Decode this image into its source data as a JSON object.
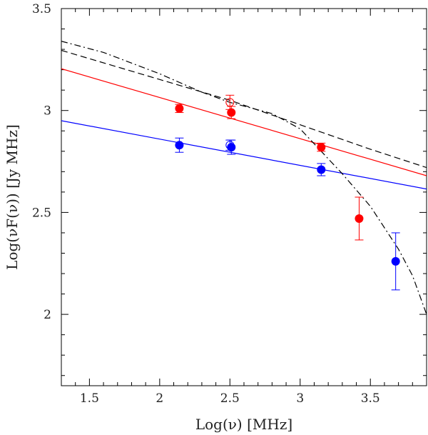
{
  "chart_data": {
    "type": "scatter",
    "title": "",
    "xlabel": "Log(ν)  [MHz]",
    "ylabel": "Log(νF(ν))  [Jy MHz]",
    "xlim": [
      1.3,
      3.9
    ],
    "ylim": [
      1.65,
      3.5
    ],
    "x_ticks": [
      1.5,
      2,
      2.5,
      3,
      3.5
    ],
    "x_tick_labels": [
      "1.5",
      "2",
      "2.5",
      "3",
      "3.5"
    ],
    "y_ticks": [
      2,
      2.5,
      3,
      3.5
    ],
    "y_tick_labels": [
      "2",
      "2.5",
      "3",
      "3.5"
    ],
    "series": [
      {
        "name": "red points",
        "color": "#ff0000",
        "marker": "filled-circle",
        "points": [
          {
            "x": 2.14,
            "y": 3.01,
            "err": 0.02
          },
          {
            "x": 2.51,
            "y": 2.99,
            "err": 0.03
          },
          {
            "x": 3.15,
            "y": 2.82,
            "err": 0.02
          },
          {
            "x": 3.42,
            "y": 2.47,
            "err": 0.105
          }
        ]
      },
      {
        "name": "red open point",
        "color": "#ff0000",
        "marker": "open-circle",
        "points": [
          {
            "x": 2.5,
            "y": 3.04,
            "err": 0.035
          }
        ]
      },
      {
        "name": "blue points",
        "color": "#0000ff",
        "marker": "filled-circle",
        "points": [
          {
            "x": 2.14,
            "y": 2.83,
            "err": 0.035
          },
          {
            "x": 2.51,
            "y": 2.82,
            "err": 0.035
          },
          {
            "x": 3.15,
            "y": 2.71,
            "err": 0.03
          },
          {
            "x": 3.68,
            "y": 2.26,
            "err": 0.14
          }
        ]
      },
      {
        "name": "blue open point",
        "color": "#0000ff",
        "marker": "open-circle",
        "points": [
          {
            "x": 2.5,
            "y": 2.83,
            "err": 0.025
          }
        ]
      }
    ],
    "lines": [
      {
        "name": "red power-law fit",
        "color": "#ff0000",
        "style": "solid",
        "points": [
          [
            1.3,
            3.205
          ],
          [
            3.9,
            2.68
          ]
        ]
      },
      {
        "name": "blue power-law fit",
        "color": "#0000ff",
        "style": "solid",
        "points": [
          [
            1.3,
            2.95
          ],
          [
            3.9,
            2.615
          ]
        ]
      },
      {
        "name": "dashed model",
        "color": "#000000",
        "style": "dashed",
        "points": [
          [
            1.3,
            3.295
          ],
          [
            2.5,
            3.05
          ],
          [
            3.0,
            2.93
          ],
          [
            3.5,
            2.81
          ],
          [
            3.9,
            2.72
          ]
        ]
      },
      {
        "name": "dash-dot model",
        "color": "#000000",
        "style": "dashdot",
        "points": [
          [
            1.3,
            3.34
          ],
          [
            1.6,
            3.285
          ],
          [
            2.0,
            3.18
          ],
          [
            2.3,
            3.09
          ],
          [
            2.5,
            3.04
          ],
          [
            2.8,
            2.985
          ],
          [
            3.0,
            2.91
          ],
          [
            3.15,
            2.8
          ],
          [
            3.3,
            2.69
          ],
          [
            3.5,
            2.53
          ],
          [
            3.7,
            2.32
          ],
          [
            3.8,
            2.19
          ],
          [
            3.9,
            2.0
          ]
        ]
      }
    ],
    "grid": false,
    "legend": "none"
  }
}
